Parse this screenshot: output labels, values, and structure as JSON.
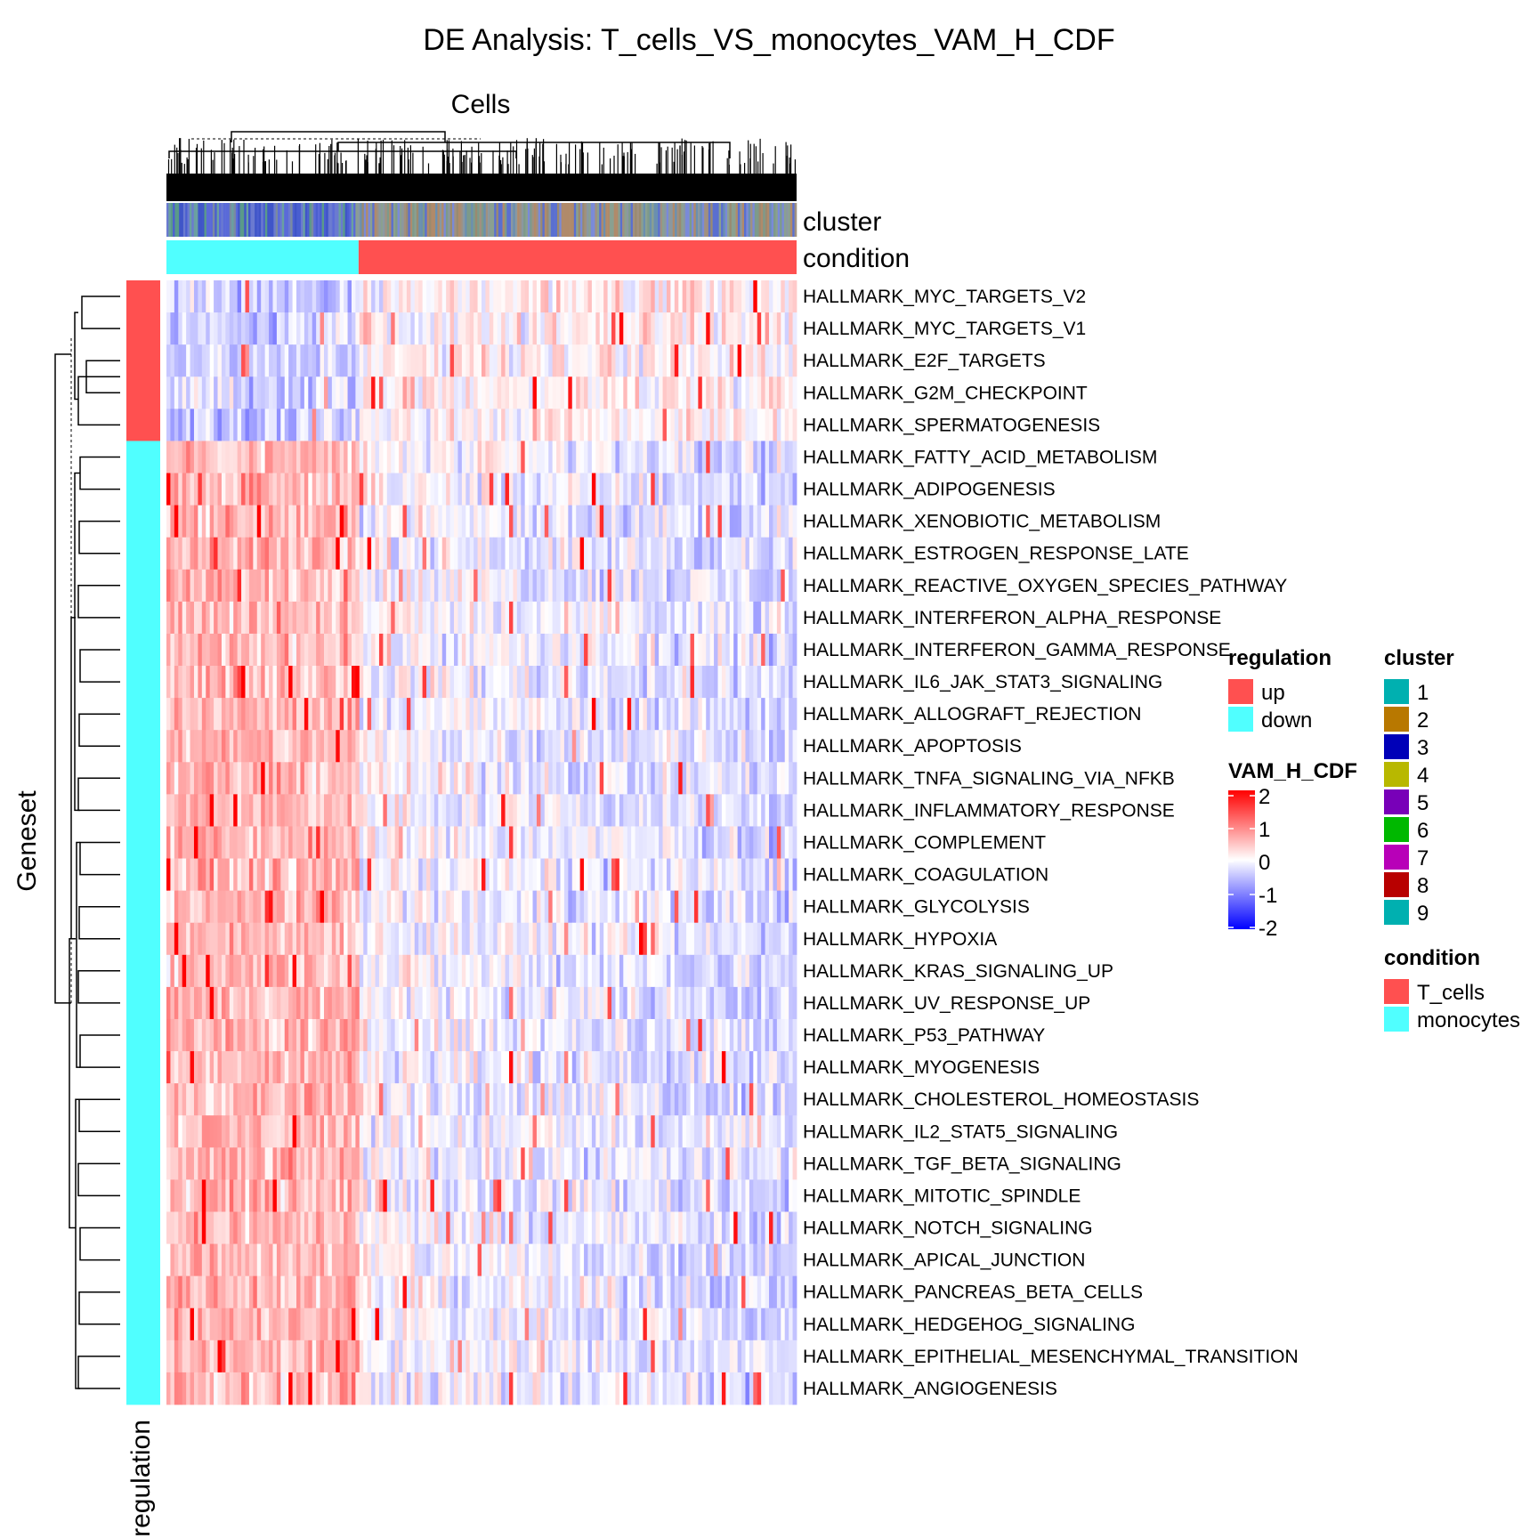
{
  "chart_data": {
    "type": "heatmap",
    "title": "DE Analysis: T_cells_VS_monocytes_VAM_H_CDF",
    "xlabel": "Cells",
    "ylabel": "Geneset",
    "row_annotation_label": "regulation",
    "column_annotations": [
      "cluster",
      "condition"
    ],
    "rows": [
      {
        "name": "HALLMARK_MYC_TARGETS_V2",
        "regulation": "up"
      },
      {
        "name": "HALLMARK_MYC_TARGETS_V1",
        "regulation": "up"
      },
      {
        "name": "HALLMARK_E2F_TARGETS",
        "regulation": "up"
      },
      {
        "name": "HALLMARK_G2M_CHECKPOINT",
        "regulation": "up"
      },
      {
        "name": "HALLMARK_SPERMATOGENESIS",
        "regulation": "up"
      },
      {
        "name": "HALLMARK_FATTY_ACID_METABOLISM",
        "regulation": "down"
      },
      {
        "name": "HALLMARK_ADIPOGENESIS",
        "regulation": "down"
      },
      {
        "name": "HALLMARK_XENOBIOTIC_METABOLISM",
        "regulation": "down"
      },
      {
        "name": "HALLMARK_ESTROGEN_RESPONSE_LATE",
        "regulation": "down"
      },
      {
        "name": "HALLMARK_REACTIVE_OXYGEN_SPECIES_PATHWAY",
        "regulation": "down"
      },
      {
        "name": "HALLMARK_INTERFERON_ALPHA_RESPONSE",
        "regulation": "down"
      },
      {
        "name": "HALLMARK_INTERFERON_GAMMA_RESPONSE",
        "regulation": "down"
      },
      {
        "name": "HALLMARK_IL6_JAK_STAT3_SIGNALING",
        "regulation": "down"
      },
      {
        "name": "HALLMARK_ALLOGRAFT_REJECTION",
        "regulation": "down"
      },
      {
        "name": "HALLMARK_APOPTOSIS",
        "regulation": "down"
      },
      {
        "name": "HALLMARK_TNFA_SIGNALING_VIA_NFKB",
        "regulation": "down"
      },
      {
        "name": "HALLMARK_INFLAMMATORY_RESPONSE",
        "regulation": "down"
      },
      {
        "name": "HALLMARK_COMPLEMENT",
        "regulation": "down"
      },
      {
        "name": "HALLMARK_COAGULATION",
        "regulation": "down"
      },
      {
        "name": "HALLMARK_GLYCOLYSIS",
        "regulation": "down"
      },
      {
        "name": "HALLMARK_HYPOXIA",
        "regulation": "down"
      },
      {
        "name": "HALLMARK_KRAS_SIGNALING_UP",
        "regulation": "down"
      },
      {
        "name": "HALLMARK_UV_RESPONSE_UP",
        "regulation": "down"
      },
      {
        "name": "HALLMARK_P53_PATHWAY",
        "regulation": "down"
      },
      {
        "name": "HALLMARK_MYOGENESIS",
        "regulation": "down"
      },
      {
        "name": "HALLMARK_CHOLESTEROL_HOMEOSTASIS",
        "regulation": "down"
      },
      {
        "name": "HALLMARK_IL2_STAT5_SIGNALING",
        "regulation": "down"
      },
      {
        "name": "HALLMARK_TGF_BETA_SIGNALING",
        "regulation": "down"
      },
      {
        "name": "HALLMARK_MITOTIC_SPINDLE",
        "regulation": "down"
      },
      {
        "name": "HALLMARK_NOTCH_SIGNALING",
        "regulation": "down"
      },
      {
        "name": "HALLMARK_APICAL_JUNCTION",
        "regulation": "down"
      },
      {
        "name": "HALLMARK_PANCREAS_BETA_CELLS",
        "regulation": "down"
      },
      {
        "name": "HALLMARK_HEDGEHOG_SIGNALING",
        "regulation": "down"
      },
      {
        "name": "HALLMARK_EPITHELIAL_MESENCHYMAL_TRANSITION",
        "regulation": "down"
      },
      {
        "name": "HALLMARK_ANGIOGENESIS",
        "regulation": "down"
      }
    ],
    "condition_split": {
      "monocytes_fraction": 0.305,
      "T_cells_fraction": 0.695
    },
    "color_scale": {
      "title": "VAM_H_CDF",
      "min": -2,
      "max": 2,
      "ticks": [
        "2",
        "1",
        "0",
        "-1",
        "-2"
      ],
      "colors": {
        "low": "#0000ff",
        "mid": "#ffffff",
        "high": "#ff0000"
      }
    },
    "legends": {
      "regulation": {
        "title": "regulation",
        "items": [
          {
            "label": "up",
            "color": "#ff5050"
          },
          {
            "label": "down",
            "color": "#50ffff"
          }
        ]
      },
      "cluster": {
        "title": "cluster",
        "items": [
          {
            "label": "1",
            "color": "#00b0b0"
          },
          {
            "label": "2",
            "color": "#b87800"
          },
          {
            "label": "3",
            "color": "#0000b8"
          },
          {
            "label": "4",
            "color": "#b8b800"
          },
          {
            "label": "5",
            "color": "#7800b8"
          },
          {
            "label": "6",
            "color": "#00b800"
          },
          {
            "label": "7",
            "color": "#b800b8"
          },
          {
            "label": "8",
            "color": "#b80000"
          },
          {
            "label": "9",
            "color": "#00b0b0"
          }
        ]
      },
      "condition": {
        "title": "condition",
        "items": [
          {
            "label": "T_cells",
            "color": "#ff5050"
          },
          {
            "label": "monocytes",
            "color": "#50ffff"
          }
        ]
      }
    }
  }
}
